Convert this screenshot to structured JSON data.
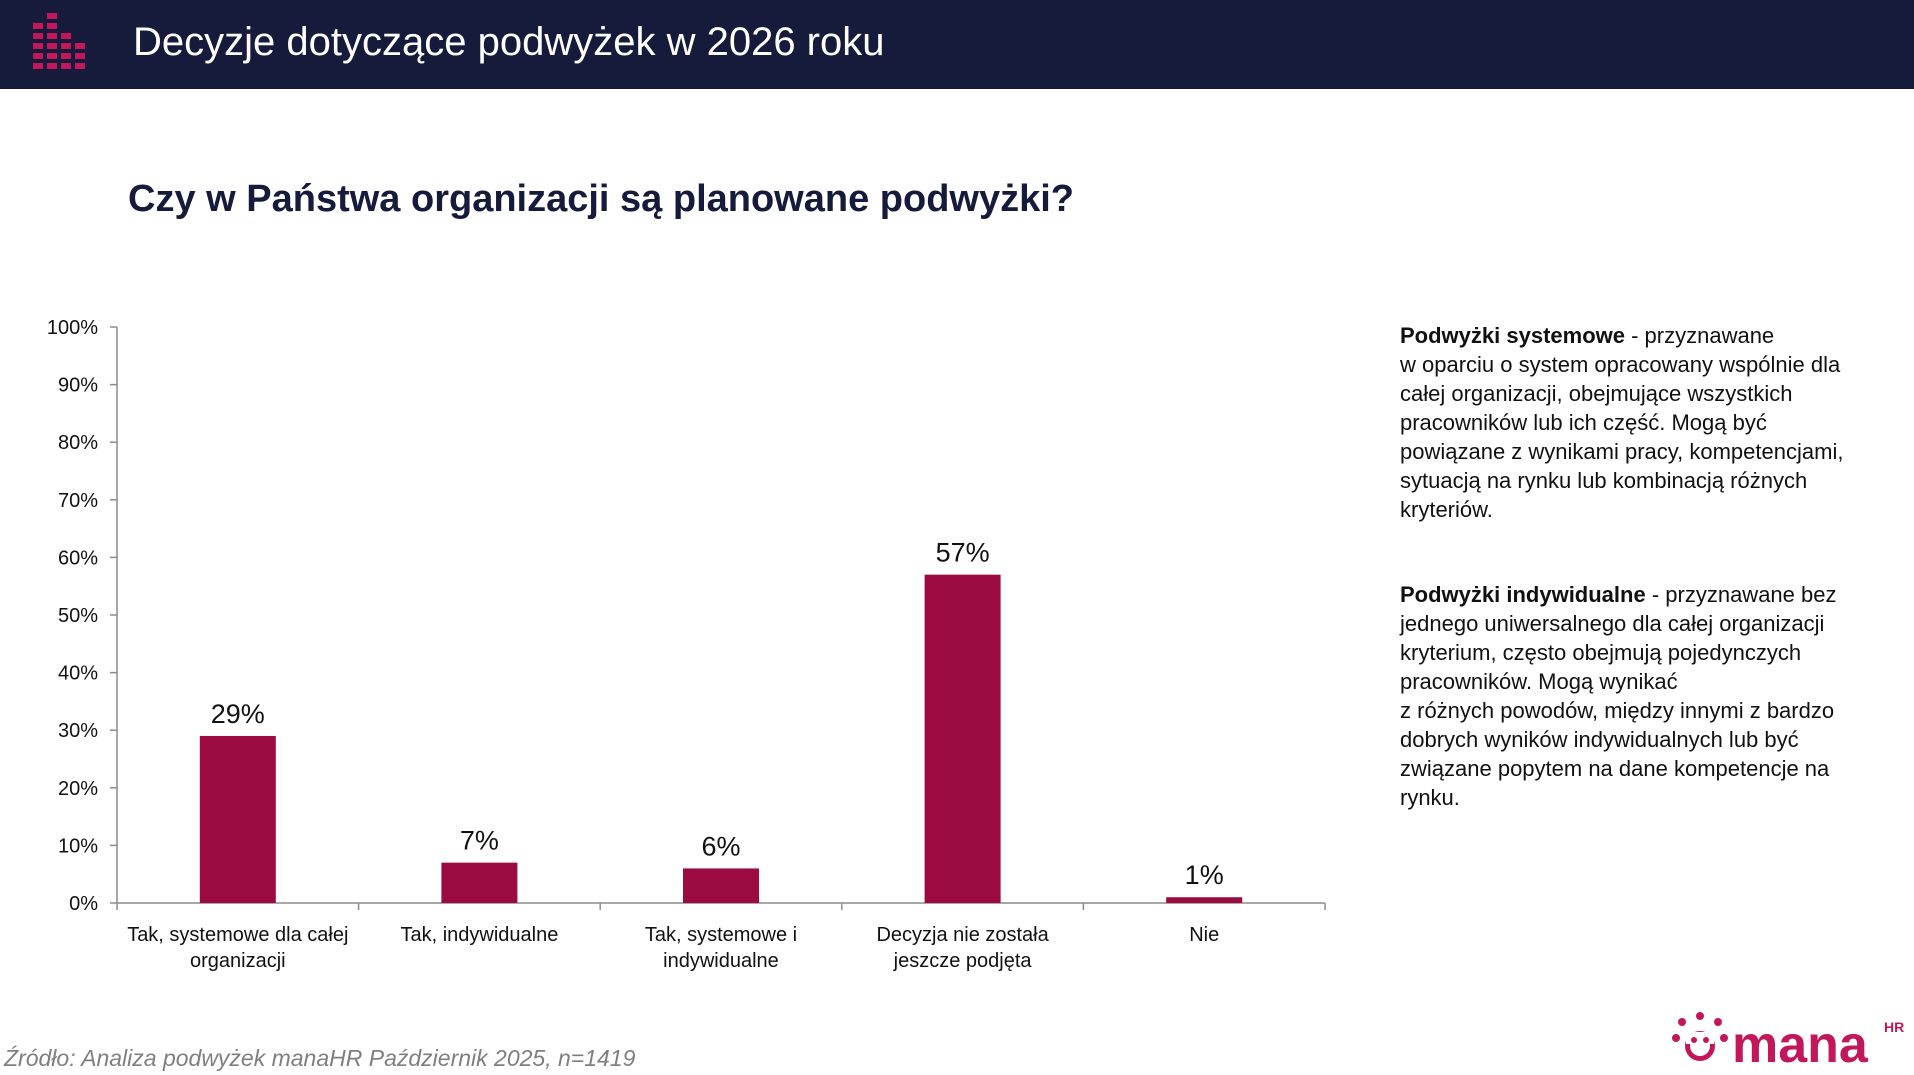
{
  "header": {
    "title": "Decyzje dotyczące podwyżek w 2026 roku",
    "logo_icon": "equalizer-bars-icon"
  },
  "question": "Czy w Państwa organizacji są planowane podwyżki?",
  "chart_data": {
    "type": "bar",
    "title": "Czy w Państwa organizacji są planowane podwyżki?",
    "categories": [
      [
        "Tak, systemowe dla całej",
        "organizacji"
      ],
      [
        "Tak, indywidualne"
      ],
      [
        "Tak, systemowe i",
        "indywidualne"
      ],
      [
        "Decyzja nie została",
        "jeszcze podjęta"
      ],
      [
        "Nie"
      ]
    ],
    "values": [
      29,
      7,
      6,
      57,
      1
    ],
    "data_labels": [
      "29%",
      "7%",
      "6%",
      "57%",
      "1%"
    ],
    "yticks": [
      "0%",
      "10%",
      "20%",
      "30%",
      "40%",
      "50%",
      "60%",
      "70%",
      "80%",
      "90%",
      "100%"
    ],
    "ylim": [
      0,
      100
    ],
    "xlabel": "",
    "ylabel": "",
    "grid": false,
    "bar_color": "#9b0a41"
  },
  "explanations": {
    "systemowe": {
      "term": "Podwyżki systemowe",
      "lines": [
        " - przyznawane",
        "w oparciu o system opracowany wspólnie dla",
        "całej organizacji, obejmujące wszystkich",
        "pracowników lub ich część. Mogą być",
        "powiązane z wynikami pracy, kompetencjami,",
        "sytuacją na rynku lub kombinacją różnych",
        "kryteriów."
      ]
    },
    "indywidualne": {
      "term": "Podwyżki indywidualne",
      "lines": [
        " - przyznawane bez",
        "jednego uniwersalnego dla całej organizacji",
        "kryterium, często obejmują pojedynczych",
        "pracowników. Mogą wynikać",
        "z różnych powodów, między innymi z bardzo",
        "dobrych wyników indywidualnych lub być",
        "związane popytem na dane kompetencje na",
        "rynku."
      ]
    }
  },
  "source": "Źródło: Analiza podwyżek manaHR Październik 2025, n=1419",
  "brand": {
    "name": "mana",
    "sup": "HR",
    "icon": "sun-smile-icon",
    "color": "#c2185b"
  },
  "colors": {
    "header_bg": "#161a3b",
    "accent": "#c2185b",
    "bar": "#9b0a41"
  }
}
